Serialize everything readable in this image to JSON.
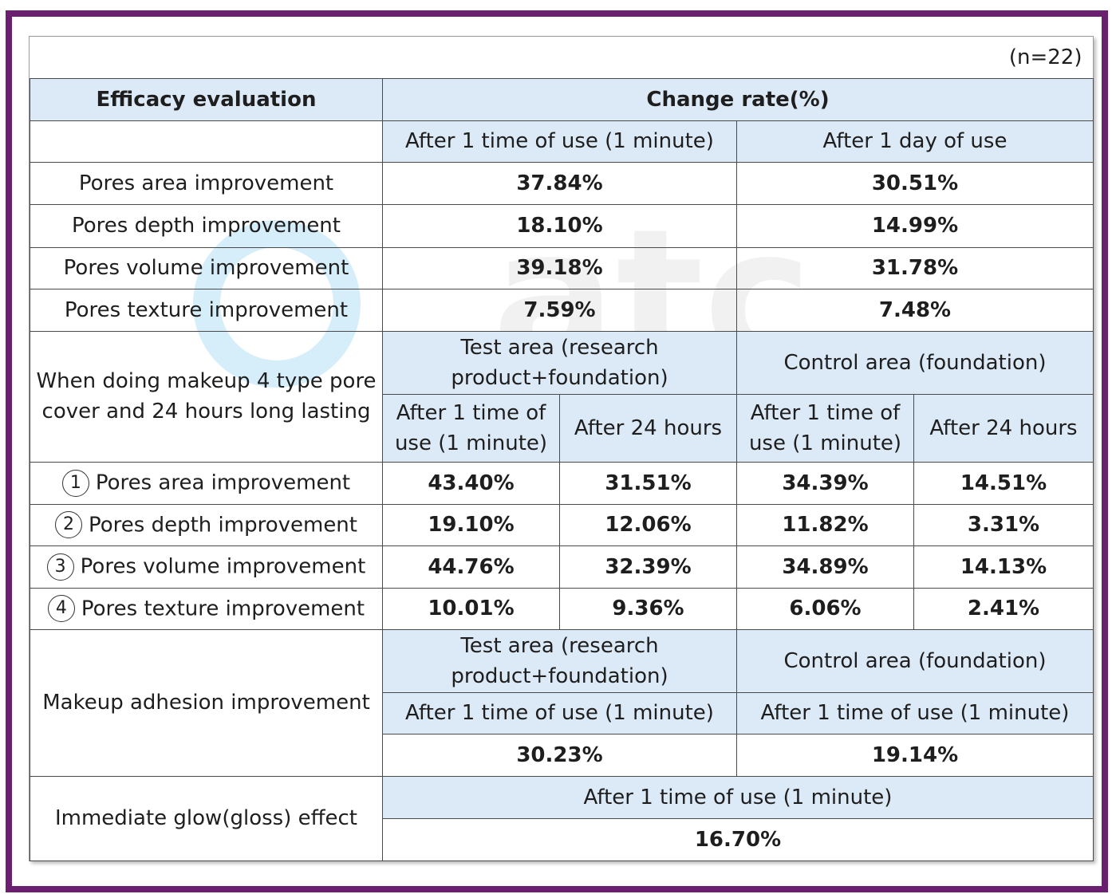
{
  "n_note": "(n=22)",
  "header": {
    "left": "Efficacy evaluation",
    "right": "Change rate(%)"
  },
  "section1": {
    "col_headers": [
      "After 1 time of use (1 minute)",
      "After 1 day of use"
    ],
    "rows": [
      {
        "label": "Pores area improvement",
        "values": [
          "37.84%",
          "30.51%"
        ]
      },
      {
        "label": "Pores depth improvement",
        "values": [
          "18.10%",
          "14.99%"
        ]
      },
      {
        "label": "Pores volume improvement",
        "values": [
          "39.18%",
          "31.78%"
        ]
      },
      {
        "label": "Pores texture improvement",
        "values": [
          "7.59%",
          "7.48%"
        ]
      }
    ]
  },
  "section2": {
    "label": "When doing makeup 4 type pore cover and 24 hours long lasting",
    "group_headers": [
      "Test area (research product+foundation)",
      "Control area (foundation)"
    ],
    "sub_headers": [
      "After 1 time of use (1 minute)",
      "After 24 hours",
      "After 1 time of use (1 minute)",
      "After 24 hours"
    ],
    "rows": [
      {
        "num": "1",
        "label": "Pores area improvement",
        "values": [
          "43.40%",
          "31.51%",
          "34.39%",
          "14.51%"
        ]
      },
      {
        "num": "2",
        "label": "Pores depth improvement",
        "values": [
          "19.10%",
          "12.06%",
          "11.82%",
          "3.31%"
        ]
      },
      {
        "num": "3",
        "label": "Pores volume improvement",
        "values": [
          "44.76%",
          "32.39%",
          "34.89%",
          "14.13%"
        ]
      },
      {
        "num": "4",
        "label": "Pores texture improvement",
        "values": [
          "10.01%",
          "9.36%",
          "6.06%",
          "2.41%"
        ]
      }
    ]
  },
  "section3": {
    "label": "Makeup adhesion improvement",
    "group_headers": [
      "Test area (research product+foundation)",
      "Control area (foundation)"
    ],
    "sub_headers": [
      "After 1 time of use (1 minute)",
      "After 1 time of use (1 minute)"
    ],
    "values": [
      "30.23%",
      "19.14%"
    ]
  },
  "section4": {
    "label": "Immediate glow(gloss) effect",
    "sub_header": "After 1 time of use (1 minute)",
    "value": "16.70%"
  },
  "watermark": {
    "text": "atc",
    "color": "#3fb2e8"
  },
  "colors": {
    "frame": "#6b1f6f",
    "header_fill": "#dce9f6",
    "border": "#4a4a4a"
  }
}
